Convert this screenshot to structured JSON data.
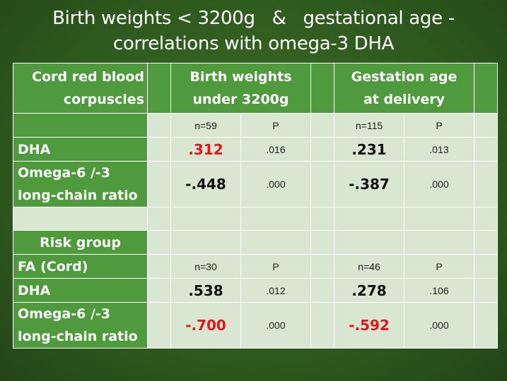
{
  "title": {
    "line1": "Birth weights < 3200g   &   gestational age -",
    "line2": "correlations with omega-3 DHA"
  },
  "header": {
    "col1_line1": "Cord red blood",
    "col1_line2": "corpuscles",
    "col2_line1": "Birth weights",
    "col2_line2": "under 3200g",
    "col3_line1": "Gestation age",
    "col3_line2": "at delivery"
  },
  "sub1": {
    "n1": "n=59",
    "p1": "P",
    "n2": "n=115",
    "p2": "P"
  },
  "dha1": {
    "label": "DHA",
    "v1": ".312",
    "p1": ".016",
    "v2": ".231",
    "p2": ".013"
  },
  "ratio1": {
    "label_line1": "Omega-6 /-3",
    "label_line2": "long-chain ratio",
    "v1": "-.448",
    "p1": ".000",
    "v2": "-.387",
    "p2": ".000"
  },
  "risk": {
    "label": "Risk group"
  },
  "fa": {
    "label": "FA (Cord)",
    "n1": "n=30",
    "p1": "P",
    "n2": "n=46",
    "p2": "P"
  },
  "dha2": {
    "label": "DHA",
    "v1": ".538",
    "p1": ".012",
    "v2": ".278",
    "p2": ".106"
  },
  "ratio2": {
    "label_line1": "Omega-6 /-3",
    "label_line2": "long-chain ratio",
    "v1": "-.700",
    "p1": ".000",
    "v2": "-.592",
    "p2": ".000"
  },
  "colors": {
    "background": "#2f5a1e",
    "green_cell": "#4e9a3c",
    "light_cell": "#d8e6d2",
    "red_value": "#e8141c"
  }
}
